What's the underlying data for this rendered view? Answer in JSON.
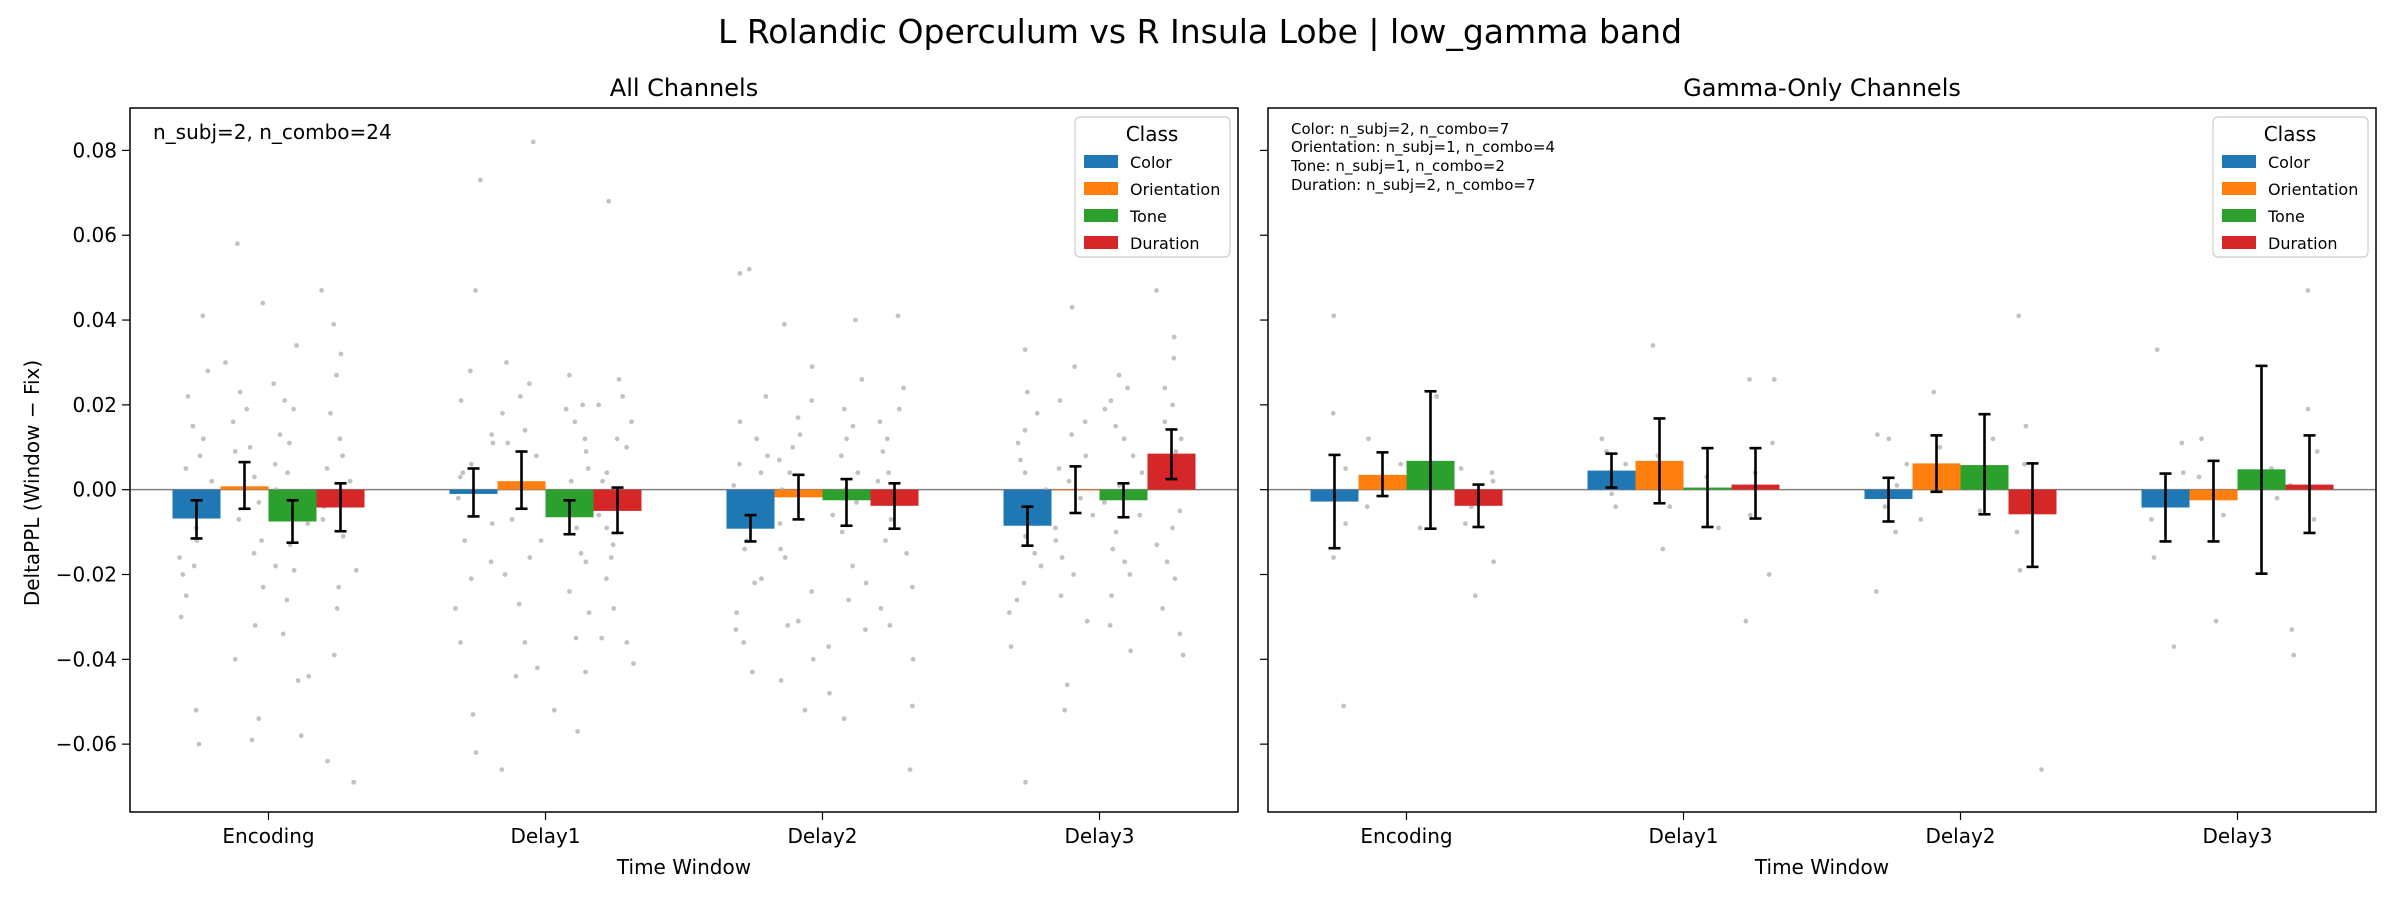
{
  "figure": {
    "suptitle": "L Rolandic Operculum vs R Insula Lobe  |  low_gamma band",
    "ylabel": "DeltaPPL (Window − Fix)",
    "legend_title": "Class",
    "colors": {
      "Color": "#1f77b4",
      "Orientation": "#ff7f0e",
      "Tone": "#2ca02c",
      "Duration": "#d62728"
    }
  },
  "chart_data": [
    {
      "type": "bar",
      "title": "All Channels",
      "xlabel": "Time Window",
      "ylabel": "DeltaPPL (Window − Fix)",
      "ylim": [
        -0.076,
        0.09
      ],
      "yticks": [
        -0.06,
        -0.04,
        -0.02,
        0.0,
        0.02,
        0.04,
        0.06,
        0.08
      ],
      "ytick_labels": [
        "−0.06",
        "−0.04",
        "−0.02",
        "0.00",
        "0.02",
        "0.04",
        "0.06",
        "0.08"
      ],
      "categories": [
        "Encoding",
        "Delay1",
        "Delay2",
        "Delay3"
      ],
      "annotations": [
        "n_subj=2, n_combo=24"
      ],
      "legend": {
        "title": "Class",
        "position": "top-right"
      },
      "series": [
        {
          "name": "Color",
          "values": [
            -0.0068,
            -0.001,
            -0.0092,
            -0.0085
          ],
          "err_low": [
            -0.0115,
            -0.0063,
            -0.0122,
            -0.0132
          ],
          "err_high": [
            -0.0025,
            0.005,
            -0.006,
            -0.004
          ]
        },
        {
          "name": "Orientation",
          "values": [
            0.0008,
            0.002,
            -0.0018,
            0.0
          ],
          "err_low": [
            -0.0045,
            -0.0045,
            -0.007,
            -0.0055
          ],
          "err_high": [
            0.0065,
            0.009,
            0.0035,
            0.0055
          ]
        },
        {
          "name": "Tone",
          "values": [
            -0.0075,
            -0.0065,
            -0.0025,
            -0.0025
          ],
          "err_low": [
            -0.0125,
            -0.0105,
            -0.0085,
            -0.0065
          ],
          "err_high": [
            -0.0025,
            -0.0025,
            0.0025,
            0.0015
          ]
        },
        {
          "name": "Duration",
          "values": [
            -0.0042,
            -0.005,
            -0.0038,
            0.0085
          ],
          "err_low": [
            -0.0098,
            -0.0102,
            -0.0092,
            0.0025
          ],
          "err_high": [
            0.0015,
            0.0005,
            0.0015,
            0.0142
          ]
        }
      ],
      "scatter_points": [
        [
          [
            -0.052,
            -0.06,
            -0.03,
            -0.025,
            -0.018,
            -0.012,
            -0.004,
            0.002,
            0.008,
            0.015,
            0.022,
            0.028,
            0.041,
            -0.016,
            -0.009,
            0.005,
            0.012,
            -0.02
          ],
          [
            -0.04,
            -0.032,
            -0.054,
            -0.023,
            -0.012,
            -0.003,
            0.003,
            0.01,
            0.019,
            0.03,
            0.058,
            -0.007,
            0.016,
            0.023,
            -0.059,
            -0.015,
            0.009,
            0.044
          ],
          [
            -0.058,
            -0.045,
            -0.034,
            -0.026,
            -0.018,
            -0.008,
            0.0,
            0.006,
            0.013,
            0.021,
            0.025,
            0.034,
            -0.013,
            0.004,
            -0.019,
            -0.044,
            0.019,
            0.011
          ],
          [
            -0.069,
            -0.064,
            -0.039,
            -0.028,
            -0.019,
            -0.011,
            -0.004,
            0.005,
            0.012,
            0.018,
            0.027,
            0.032,
            0.039,
            0.047,
            -0.007,
            0.002,
            -0.023,
            0.008
          ]
        ],
        [
          [
            -0.062,
            -0.053,
            -0.036,
            -0.028,
            -0.017,
            -0.008,
            -0.002,
            0.006,
            0.013,
            0.021,
            0.028,
            0.047,
            0.073,
            -0.012,
            0.003,
            0.011,
            -0.021,
            0.004
          ],
          [
            -0.066,
            -0.044,
            -0.036,
            -0.027,
            -0.02,
            -0.012,
            0.001,
            0.008,
            0.014,
            0.022,
            0.03,
            0.082,
            -0.042,
            -0.007,
            0.018,
            0.011,
            -0.016,
            0.025
          ],
          [
            -0.052,
            -0.043,
            -0.035,
            -0.024,
            -0.017,
            -0.009,
            -0.003,
            0.005,
            0.012,
            0.019,
            0.027,
            -0.057,
            -0.015,
            0.009,
            0.002,
            -0.029,
            0.016,
            0.02
          ],
          [
            -0.041,
            -0.035,
            -0.028,
            -0.021,
            -0.013,
            -0.006,
            0.002,
            0.01,
            0.016,
            0.02,
            0.026,
            0.068,
            -0.016,
            0.004,
            -0.036,
            0.012,
            -0.009,
            0.022
          ]
        ],
        [
          [
            -0.043,
            -0.036,
            -0.029,
            -0.021,
            -0.014,
            -0.007,
            0.001,
            0.008,
            0.016,
            0.022,
            0.052,
            0.051,
            -0.022,
            -0.012,
            0.004,
            0.012,
            -0.033,
            0.006
          ],
          [
            -0.052,
            -0.04,
            -0.032,
            -0.024,
            -0.016,
            -0.008,
            0.0,
            0.007,
            0.013,
            0.021,
            0.029,
            0.039,
            -0.031,
            -0.014,
            0.004,
            0.017,
            -0.045,
            0.01
          ],
          [
            -0.054,
            -0.048,
            -0.033,
            -0.026,
            -0.018,
            -0.01,
            -0.003,
            0.004,
            0.012,
            0.019,
            0.026,
            0.04,
            -0.037,
            0.008,
            0.0,
            -0.022,
            0.015,
            -0.006
          ],
          [
            -0.066,
            -0.051,
            -0.032,
            -0.023,
            -0.015,
            -0.007,
            0.002,
            0.009,
            0.016,
            0.024,
            0.041,
            -0.04,
            -0.012,
            0.004,
            0.012,
            -0.028,
            -0.003,
            0.019
          ]
        ],
        [
          [
            -0.069,
            -0.037,
            -0.029,
            -0.022,
            -0.015,
            -0.008,
            0.0,
            0.007,
            0.014,
            0.023,
            0.033,
            -0.018,
            -0.011,
            0.004,
            0.011,
            -0.026,
            0.018,
            -0.004
          ],
          [
            -0.052,
            -0.046,
            -0.031,
            -0.025,
            -0.016,
            -0.009,
            -0.002,
            0.005,
            0.013,
            0.021,
            0.029,
            0.043,
            -0.012,
            0.008,
            -0.02,
            0.016,
            0.002,
            -0.006
          ],
          [
            -0.038,
            -0.032,
            -0.025,
            -0.017,
            -0.01,
            -0.003,
            0.004,
            0.012,
            0.019,
            0.027,
            0.021,
            -0.02,
            -0.014,
            0.008,
            0.015,
            -0.006,
            0.024,
            0.001
          ],
          [
            -0.039,
            -0.034,
            -0.028,
            -0.021,
            -0.013,
            -0.005,
            0.002,
            0.009,
            0.016,
            0.024,
            0.031,
            0.036,
            0.047,
            -0.017,
            0.004,
            0.012,
            -0.009,
            0.02
          ]
        ]
      ]
    },
    {
      "type": "bar",
      "title": "Gamma-Only Channels",
      "xlabel": "Time Window",
      "ylim": [
        -0.076,
        0.09
      ],
      "categories": [
        "Encoding",
        "Delay1",
        "Delay2",
        "Delay3"
      ],
      "annotations": [
        "Color: n_subj=2, n_combo=7",
        "Orientation: n_subj=1, n_combo=4",
        "Tone: n_subj=1, n_combo=2",
        "Duration: n_subj=2, n_combo=7"
      ],
      "legend": {
        "title": "Class",
        "position": "top-right"
      },
      "series": [
        {
          "name": "Color",
          "values": [
            -0.0028,
            0.0045,
            -0.0022,
            -0.0042
          ],
          "err_low": [
            -0.0138,
            0.0005,
            -0.0075,
            -0.0122
          ],
          "err_high": [
            0.0082,
            0.0085,
            0.0028,
            0.0038
          ]
        },
        {
          "name": "Orientation",
          "values": [
            0.0035,
            0.0068,
            0.0062,
            -0.0025
          ],
          "err_low": [
            -0.0015,
            -0.0032,
            -0.0005,
            -0.0122
          ],
          "err_high": [
            0.0088,
            0.0168,
            0.0128,
            0.0068
          ]
        },
        {
          "name": "Tone",
          "values": [
            0.0068,
            0.0005,
            0.0058,
            0.0048
          ],
          "err_low": [
            -0.0092,
            -0.0088,
            -0.0058,
            -0.0198
          ],
          "err_high": [
            0.0232,
            0.0098,
            0.0178,
            0.0292
          ]
        },
        {
          "name": "Duration",
          "values": [
            -0.0038,
            0.0012,
            -0.0058,
            0.0012
          ],
          "err_low": [
            -0.0088,
            -0.0068,
            -0.0182,
            -0.0102
          ],
          "err_high": [
            0.0012,
            0.0098,
            0.0062,
            0.0128
          ]
        }
      ],
      "scatter_points": [
        [
          [
            -0.051,
            -0.016,
            -0.008,
            -0.002,
            0.005,
            0.018,
            0.041
          ],
          [
            -0.004,
            0.002,
            0.006,
            0.012
          ],
          [
            -0.009,
            0.022
          ],
          [
            -0.025,
            -0.017,
            -0.008,
            -0.004,
            0.002,
            0.005,
            0.004
          ]
        ],
        [
          [
            -0.004,
            0.002,
            0.006,
            0.009,
            0.012,
            0.004,
            -0.001
          ],
          [
            -0.014,
            -0.004,
            0.008,
            0.034
          ],
          [
            -0.009,
            0.003
          ],
          [
            -0.031,
            -0.02,
            -0.006,
            0.004,
            0.011,
            0.026,
            0.026
          ]
        ],
        [
          [
            -0.024,
            -0.01,
            -0.004,
            0.001,
            0.006,
            0.012,
            0.013
          ],
          [
            -0.007,
            0.003,
            0.01,
            0.023
          ],
          [
            -0.005,
            0.012
          ],
          [
            -0.066,
            -0.019,
            -0.01,
            -0.003,
            0.006,
            0.015,
            0.041
          ]
        ],
        [
          [
            -0.037,
            -0.016,
            -0.007,
            -0.002,
            0.004,
            0.011,
            0.033
          ],
          [
            -0.031,
            -0.006,
            0.003,
            0.012
          ],
          [
            -0.002,
            0.005
          ],
          [
            -0.039,
            -0.033,
            -0.007,
            0.001,
            0.009,
            0.019,
            0.047
          ]
        ]
      ]
    }
  ]
}
